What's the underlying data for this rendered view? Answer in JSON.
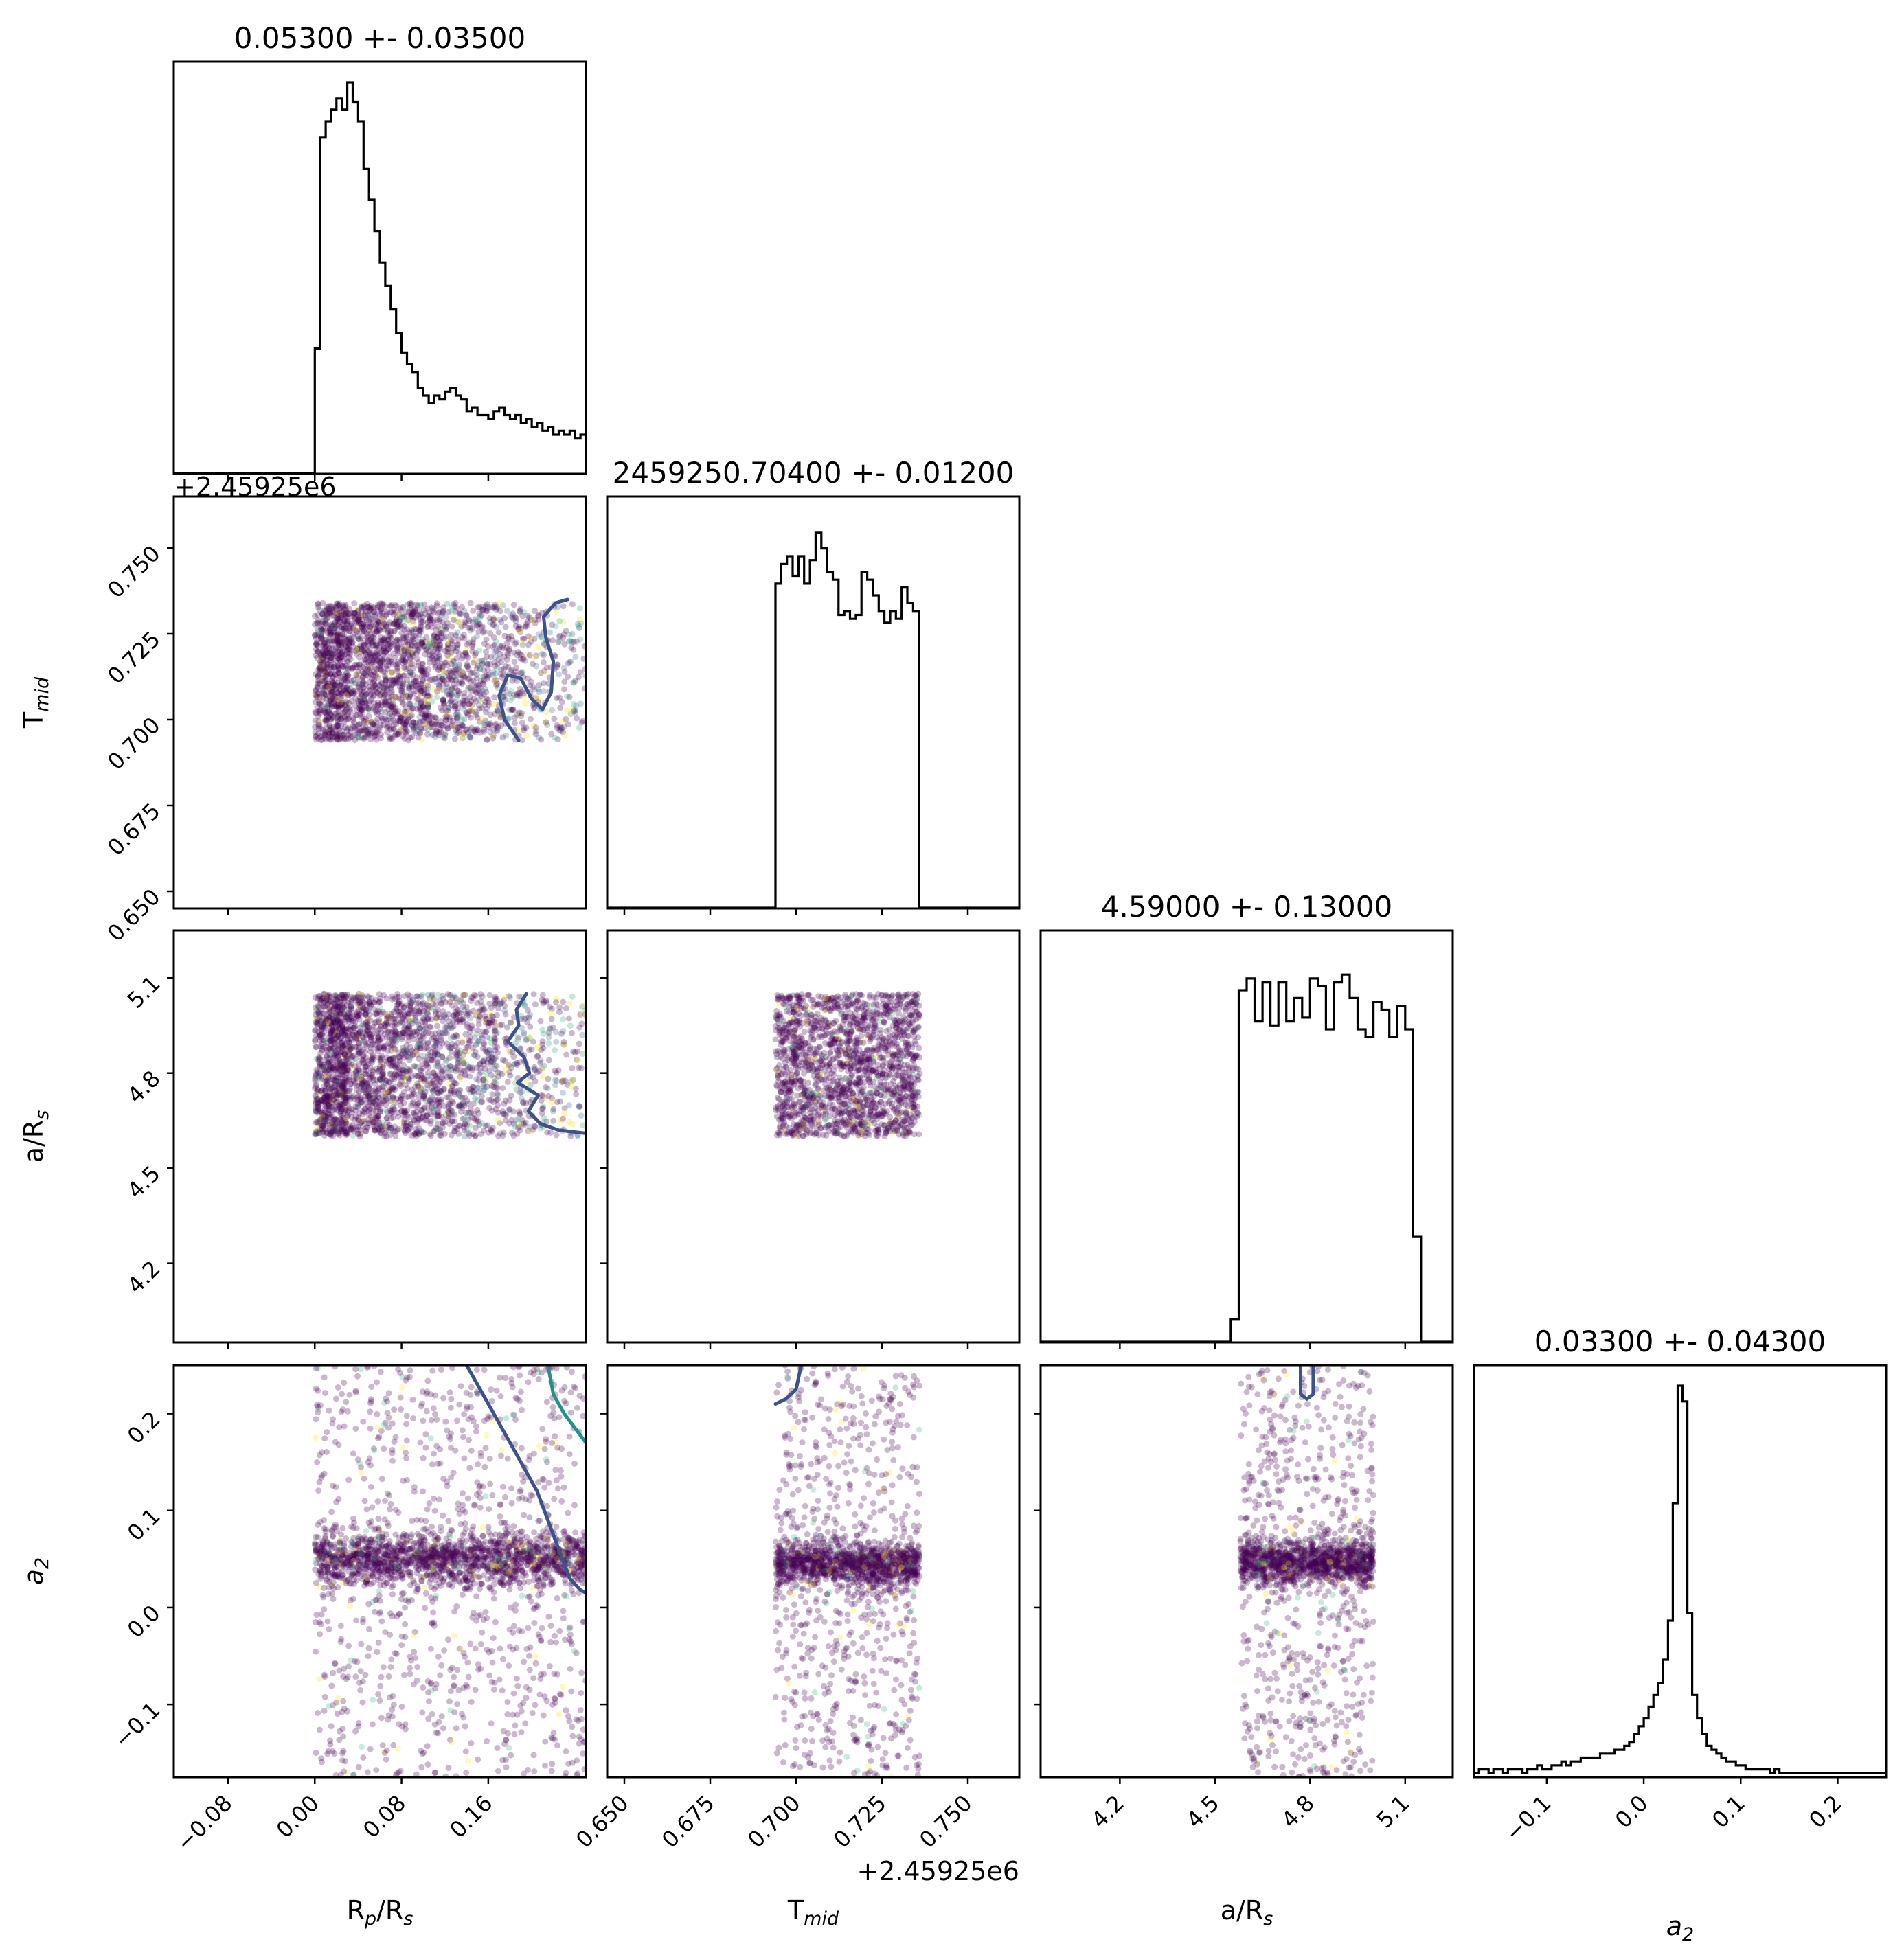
{
  "figure": {
    "type": "corner plot",
    "colors": {
      "hist": "#000000",
      "contour_outer": "#3b528b",
      "contour_inner": "#21918c",
      "point_dense": "#440154",
      "point_mid": "#31688e",
      "point_light": "#35b779",
      "point_bright": "#fde725"
    }
  },
  "chart_data": [
    {
      "type": "histogram",
      "panel": "hist-rp",
      "parameter": "R_p/R_s",
      "title": "0.05300 +- 0.03500",
      "xlim": [
        -0.13,
        0.25
      ],
      "bin_width": 0.005,
      "bin_start": 0.0,
      "heights": [
        0.32,
        0.86,
        0.9,
        0.93,
        0.96,
        0.93,
        1.0,
        0.95,
        0.9,
        0.78,
        0.7,
        0.62,
        0.54,
        0.48,
        0.42,
        0.36,
        0.31,
        0.28,
        0.26,
        0.22,
        0.2,
        0.18,
        0.2,
        0.19,
        0.21,
        0.22,
        0.2,
        0.19,
        0.16,
        0.17,
        0.15,
        0.15,
        0.14,
        0.16,
        0.17,
        0.15,
        0.14,
        0.15,
        0.13,
        0.14,
        0.12,
        0.13,
        0.11,
        0.12,
        0.1,
        0.11,
        0.1,
        0.11,
        0.09,
        0.1
      ]
    },
    {
      "type": "scatter",
      "panel": "scatter-tmid-rp",
      "x_param": "R_p/R_s",
      "y_param": "T_mid",
      "xlim": [
        -0.13,
        0.25
      ],
      "ylim": [
        0.645,
        0.765
      ],
      "points": {
        "n": 2600,
        "x_range": [
          0.0,
          0.25
        ],
        "y_range": [
          0.694,
          0.734
        ],
        "x_mode": 0.03,
        "x_spread": 0.06
      },
      "contour": [
        [
          0.188,
          0.694
        ],
        [
          0.175,
          0.7
        ],
        [
          0.17,
          0.707
        ],
        [
          0.178,
          0.713
        ],
        [
          0.19,
          0.712
        ],
        [
          0.2,
          0.706
        ],
        [
          0.21,
          0.703
        ],
        [
          0.218,
          0.708
        ],
        [
          0.22,
          0.717
        ],
        [
          0.213,
          0.724
        ],
        [
          0.211,
          0.73
        ],
        [
          0.222,
          0.734
        ],
        [
          0.233,
          0.735
        ]
      ]
    },
    {
      "type": "histogram",
      "panel": "hist-tmid",
      "parameter": "T_mid",
      "title": "2459250.70400 +- 0.01200",
      "xlim": [
        0.645,
        0.765
      ],
      "bin_width": 0.00167,
      "bin_start": 0.694,
      "heights": [
        0.83,
        0.88,
        0.9,
        0.85,
        0.9,
        0.83,
        0.89,
        0.96,
        0.92,
        0.86,
        0.84,
        0.75,
        0.76,
        0.74,
        0.75,
        0.86,
        0.84,
        0.8,
        0.76,
        0.73,
        0.76,
        0.74,
        0.82,
        0.78,
        0.76
      ]
    },
    {
      "type": "scatter",
      "panel": "scatter-ars-rp",
      "x_param": "R_p/R_s",
      "y_param": "a/R_s",
      "xlim": [
        -0.13,
        0.25
      ],
      "ylim": [
        3.95,
        5.25
      ],
      "points": {
        "n": 2600,
        "x_range": [
          0.0,
          0.25
        ],
        "y_range": [
          4.6,
          5.05
        ],
        "x_mode": 0.03,
        "x_spread": 0.06
      },
      "contour": [
        [
          0.195,
          5.05
        ],
        [
          0.186,
          5.0
        ],
        [
          0.188,
          4.95
        ],
        [
          0.178,
          4.9
        ],
        [
          0.193,
          4.85
        ],
        [
          0.198,
          4.8
        ],
        [
          0.187,
          4.77
        ],
        [
          0.206,
          4.73
        ],
        [
          0.197,
          4.68
        ],
        [
          0.208,
          4.64
        ],
        [
          0.225,
          4.62
        ],
        [
          0.25,
          4.61
        ]
      ]
    },
    {
      "type": "scatter",
      "panel": "scatter-ars-tmid",
      "x_param": "T_mid",
      "y_param": "a/R_s",
      "xlim": [
        0.645,
        0.765
      ],
      "ylim": [
        3.95,
        5.25
      ],
      "points": {
        "n": 1800,
        "x_range": [
          0.694,
          0.736
        ],
        "y_range": [
          4.6,
          5.05
        ]
      }
    },
    {
      "type": "histogram",
      "panel": "hist-ars",
      "parameter": "a/R_s",
      "title": "4.59000 +- 0.13000",
      "xlim": [
        3.95,
        5.25
      ],
      "bin_width": 0.025,
      "bin_start": 4.55,
      "heights": [
        0.06,
        0.9,
        0.93,
        0.82,
        0.92,
        0.81,
        0.92,
        0.82,
        0.88,
        0.83,
        0.93,
        0.91,
        0.8,
        0.92,
        0.94,
        0.88,
        0.8,
        0.78,
        0.87,
        0.85,
        0.78,
        0.86,
        0.8,
        0.27
      ]
    },
    {
      "type": "scatter",
      "panel": "scatter-a2-rp",
      "x_param": "R_p/R_s",
      "y_param": "a_2",
      "xlim": [
        -0.13,
        0.25
      ],
      "ylim": [
        -0.175,
        0.25
      ],
      "points": {
        "n": 2600,
        "x_range": [
          0.0,
          0.25
        ],
        "y_range": [
          -0.175,
          0.25
        ],
        "y_center": 0.05,
        "y_spread": 0.025
      },
      "contour": [
        [
          0.14,
          0.25
        ],
        [
          0.155,
          0.22
        ],
        [
          0.175,
          0.18
        ],
        [
          0.19,
          0.15
        ],
        [
          0.205,
          0.12
        ],
        [
          0.215,
          0.09
        ],
        [
          0.225,
          0.06
        ],
        [
          0.235,
          0.03
        ],
        [
          0.245,
          0.018
        ],
        [
          0.25,
          0.015
        ]
      ],
      "contour_inner": [
        [
          0.215,
          0.25
        ],
        [
          0.22,
          0.22
        ],
        [
          0.23,
          0.2
        ],
        [
          0.24,
          0.185
        ],
        [
          0.25,
          0.17
        ]
      ]
    },
    {
      "type": "scatter",
      "panel": "scatter-a2-tmid",
      "x_param": "T_mid",
      "y_param": "a_2",
      "xlim": [
        0.645,
        0.765
      ],
      "ylim": [
        -0.175,
        0.25
      ],
      "points": {
        "n": 1800,
        "x_range": [
          0.694,
          0.736
        ],
        "y_range": [
          -0.175,
          0.25
        ],
        "y_center": 0.045,
        "y_spread": 0.02
      },
      "contour": [
        [
          0.694,
          0.21
        ],
        [
          0.697,
          0.215
        ],
        [
          0.7,
          0.225
        ],
        [
          0.7015,
          0.25
        ]
      ]
    },
    {
      "type": "scatter",
      "panel": "scatter-a2-ars",
      "x_param": "a/R_s",
      "y_param": "a_2",
      "xlim": [
        3.95,
        5.25
      ],
      "ylim": [
        -0.175,
        0.25
      ],
      "points": {
        "n": 1800,
        "x_range": [
          4.58,
          5.0
        ],
        "y_range": [
          -0.175,
          0.25
        ],
        "y_center": 0.047,
        "y_spread": 0.02
      },
      "contour": [
        [
          4.77,
          0.25
        ],
        [
          4.77,
          0.22
        ],
        [
          4.79,
          0.215
        ],
        [
          4.81,
          0.22
        ],
        [
          4.81,
          0.25
        ]
      ]
    },
    {
      "type": "histogram",
      "panel": "hist-a2",
      "parameter": "a_2",
      "title": "0.03300 +- 0.04300",
      "xlim": [
        -0.175,
        0.25
      ],
      "bin_width": 0.005,
      "bin_start": -0.175,
      "heights": [
        0.01,
        0.02,
        0.02,
        0.01,
        0.02,
        0.02,
        0.01,
        0.02,
        0.02,
        0.02,
        0.01,
        0.02,
        0.02,
        0.03,
        0.02,
        0.02,
        0.03,
        0.03,
        0.04,
        0.03,
        0.04,
        0.04,
        0.05,
        0.05,
        0.05,
        0.05,
        0.06,
        0.06,
        0.06,
        0.07,
        0.07,
        0.08,
        0.09,
        0.11,
        0.13,
        0.15,
        0.18,
        0.21,
        0.24,
        0.3,
        0.4,
        0.7,
        1.0,
        0.96,
        0.42,
        0.21,
        0.15,
        0.11,
        0.08,
        0.07,
        0.06,
        0.05,
        0.04,
        0.04,
        0.03,
        0.03,
        0.02,
        0.02,
        0.02,
        0.02,
        0.02,
        0.01,
        0.02,
        0.01,
        0.01,
        0.01,
        0.01,
        0.01,
        0.01,
        0.01,
        0.01,
        0.01,
        0.01,
        0.01,
        0.01,
        0.01,
        0.01,
        0.01,
        0.01,
        0.01,
        0.01,
        0.01,
        0.01,
        0.01,
        0.01
      ]
    }
  ],
  "axes": {
    "rp": {
      "label_main": "R",
      "label_sub": "p",
      "label_tail": "/R",
      "label_sub2": "s",
      "ticks": [
        "−0.08",
        "0.00",
        "0.08",
        "0.16"
      ],
      "tick_values": [
        -0.08,
        0.0,
        0.08,
        0.16
      ]
    },
    "tmid": {
      "label_main": "T",
      "label_sub": "mid",
      "ticks": [
        "0.650",
        "0.675",
        "0.700",
        "0.725",
        "0.750"
      ],
      "tick_values": [
        0.65,
        0.675,
        0.7,
        0.725,
        0.75
      ],
      "offset": "+2.45925e6"
    },
    "ars": {
      "label_main": "a/R",
      "label_sub": "s",
      "ticks": [
        "4.2",
        "4.5",
        "4.8",
        "5.1"
      ],
      "tick_values": [
        4.2,
        4.5,
        4.8,
        5.1
      ]
    },
    "a2": {
      "label_main": "a",
      "label_sub": "2",
      "ticks": [
        "−0.1",
        "0.0",
        "0.1",
        "0.2"
      ],
      "tick_values": [
        -0.1,
        0.0,
        0.1,
        0.2
      ]
    }
  }
}
